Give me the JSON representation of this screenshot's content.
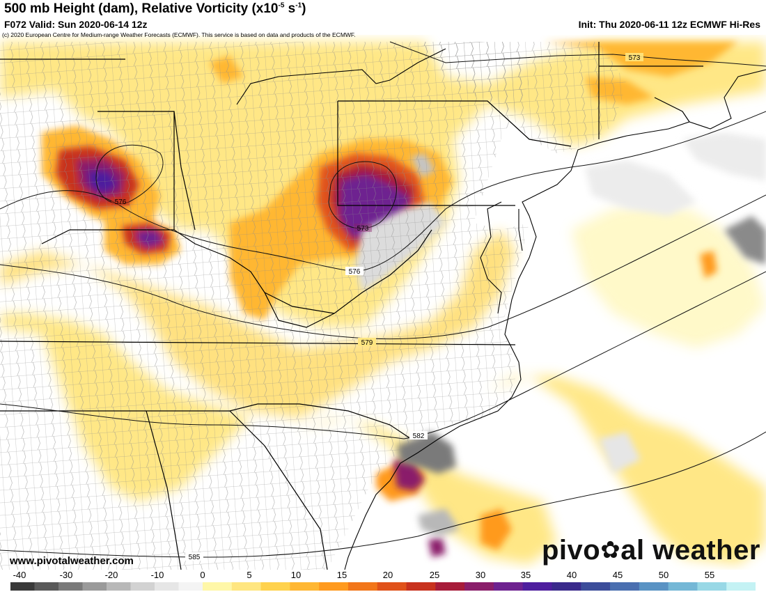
{
  "header": {
    "title_main": "500 mb Height (dam), Relative Vorticity (x10",
    "title_exp": "-5",
    "title_mid": " s",
    "title_exp2": "-1",
    "title_end": ")",
    "valid": "F072 Valid: Sun 2020-06-14 12z",
    "init": "Init: Thu 2020-06-11 12z ECMWF Hi-Res",
    "copyright": "(c) 2020 European Centre for Medium-range Weather Forecasts (ECMWF). This service is based on data and products of the ECMWF."
  },
  "footer": {
    "website": "www.pivotalweather.com",
    "brand_left": "pivo",
    "brand_gear": "✿",
    "brand_right": "al weather"
  },
  "contours": [
    {
      "label": "573"
    },
    {
      "label": "576"
    },
    {
      "label": "573"
    },
    {
      "label": "576"
    },
    {
      "label": "579"
    },
    {
      "label": "582"
    },
    {
      "label": "585"
    }
  ],
  "colorbar": {
    "ticks": [
      "-40",
      "-30",
      "-20",
      "-10",
      "0",
      "5",
      "10",
      "15",
      "20",
      "25",
      "30",
      "35",
      "40",
      "45",
      "50",
      "55"
    ],
    "colors": {
      "neg": [
        "#3a3a3a",
        "#5a5a5a",
        "#7a7a7a",
        "#9a9a9a",
        "#b8b8b8",
        "#d2d2d2",
        "#e6e6e6",
        "#f4f4f4"
      ],
      "pos": [
        "#fff7a8",
        "#ffe680",
        "#ffd24d",
        "#ffb733",
        "#ff9a1f",
        "#f2761a",
        "#e0521a",
        "#c8321e",
        "#a71c3a",
        "#8a1e6a",
        "#6e2290",
        "#4e1e9e",
        "#3a2a8c",
        "#3c4d9a",
        "#4a6fb0",
        "#5a93c4",
        "#74b7d6",
        "#98d8e6",
        "#c4f2f4"
      ]
    }
  }
}
